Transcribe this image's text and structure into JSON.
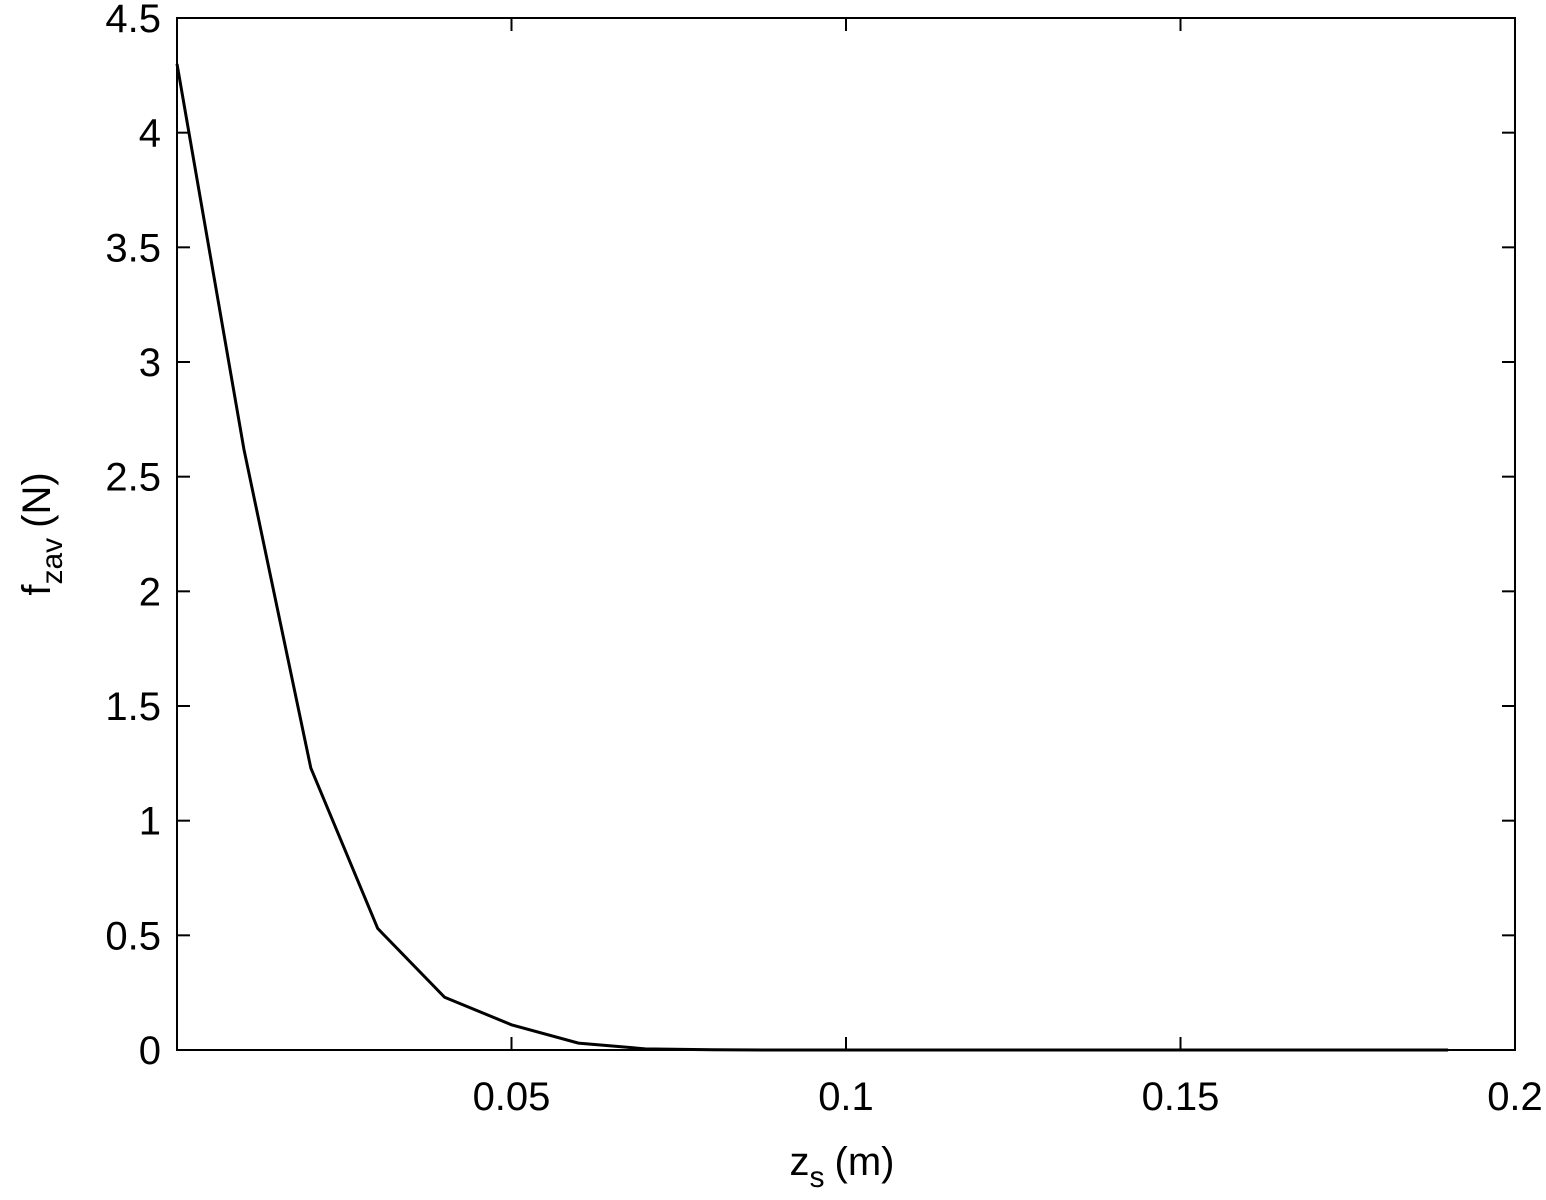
{
  "chart_data": {
    "type": "line",
    "x_label": {
      "main": "z",
      "sub": "s",
      "unit": "(m)"
    },
    "y_label": {
      "main": "f",
      "sub": "zav",
      "unit": "(N)"
    },
    "series": [
      {
        "color": "#000000",
        "x": [
          0,
          0.01,
          0.02,
          0.03,
          0.04,
          0.05,
          0.06,
          0.07,
          0.08,
          0.09,
          0.1,
          0.11,
          0.12,
          0.13,
          0.14,
          0.15,
          0.16,
          0.17,
          0.18,
          0.19
        ],
        "values": [
          4.3,
          2.62,
          1.23,
          0.53,
          0.23,
          0.11,
          0.03,
          0.005,
          0.001,
          0,
          0,
          0,
          0,
          0,
          0,
          0,
          0,
          0,
          0,
          0
        ]
      }
    ],
    "xlim": [
      0,
      0.2
    ],
    "xticks": [
      0.05,
      0.1,
      0.15,
      0.2
    ],
    "ylim": [
      0,
      4.5
    ],
    "yticks": [
      0,
      0.5,
      1,
      1.5,
      2,
      2.5,
      3,
      3.5,
      4,
      4.5
    ],
    "grid": false
  }
}
